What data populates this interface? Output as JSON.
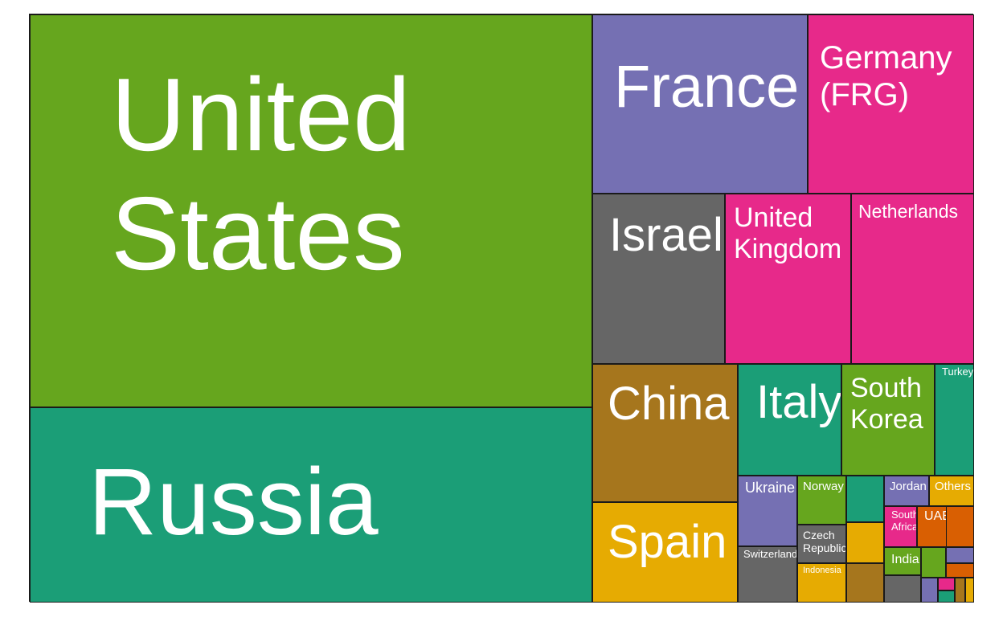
{
  "chart_data": {
    "type": "treemap",
    "title": "",
    "palette": {
      "green": "#66A61E",
      "teal": "#1B9E77",
      "purple": "#7570B3",
      "magenta": "#E7298A",
      "gray": "#666666",
      "brown": "#A6761D",
      "gold": "#E6AB02",
      "orange": "#D95F02"
    },
    "items": [
      {
        "label": "United\nStates",
        "color": "#66A61E"
      },
      {
        "label": "Russia",
        "color": "#1B9E77"
      },
      {
        "label": "France",
        "color": "#7570B3"
      },
      {
        "label": "Germany\n(FRG)",
        "color": "#E7298A"
      },
      {
        "label": "Israel",
        "color": "#666666"
      },
      {
        "label": "United\nKingdom",
        "color": "#E7298A"
      },
      {
        "label": "Netherlands",
        "color": "#E7298A"
      },
      {
        "label": "China",
        "color": "#A6761D"
      },
      {
        "label": "Spain",
        "color": "#E6AB02"
      },
      {
        "label": "Italy",
        "color": "#1B9E77"
      },
      {
        "label": "South\nKorea",
        "color": "#66A61E"
      },
      {
        "label": "Turkey",
        "color": "#1B9E77"
      },
      {
        "label": "Ukraine",
        "color": "#7570B3"
      },
      {
        "label": "Switzerland",
        "color": "#666666"
      },
      {
        "label": "Norway",
        "color": "#66A61E"
      },
      {
        "label": "Czech\nRepublic",
        "color": "#666666"
      },
      {
        "label": "Indonesia",
        "color": "#E6AB02"
      },
      {
        "label": "",
        "color": "#1B9E77"
      },
      {
        "label": "",
        "color": "#E6AB02"
      },
      {
        "label": "",
        "color": "#A6761D"
      },
      {
        "label": "Jordan",
        "color": "#7570B3"
      },
      {
        "label": "Others",
        "color": "#E6AB02"
      },
      {
        "label": "South\nAfrica",
        "color": "#E7298A"
      },
      {
        "label": "UAE",
        "color": "#D95F02"
      },
      {
        "label": "",
        "color": "#D95F02"
      },
      {
        "label": "India",
        "color": "#66A61E"
      },
      {
        "label": "",
        "color": "#666666"
      },
      {
        "label": "",
        "color": "#66A61E"
      },
      {
        "label": "",
        "color": "#7570B3"
      },
      {
        "label": "",
        "color": "#D95F02"
      },
      {
        "label": "",
        "color": "#7570B3"
      },
      {
        "label": "",
        "color": "#E7298A"
      },
      {
        "label": "",
        "color": "#1B9E77"
      },
      {
        "label": "",
        "color": "#A6761D"
      },
      {
        "label": "",
        "color": "#E6AB02"
      }
    ]
  }
}
